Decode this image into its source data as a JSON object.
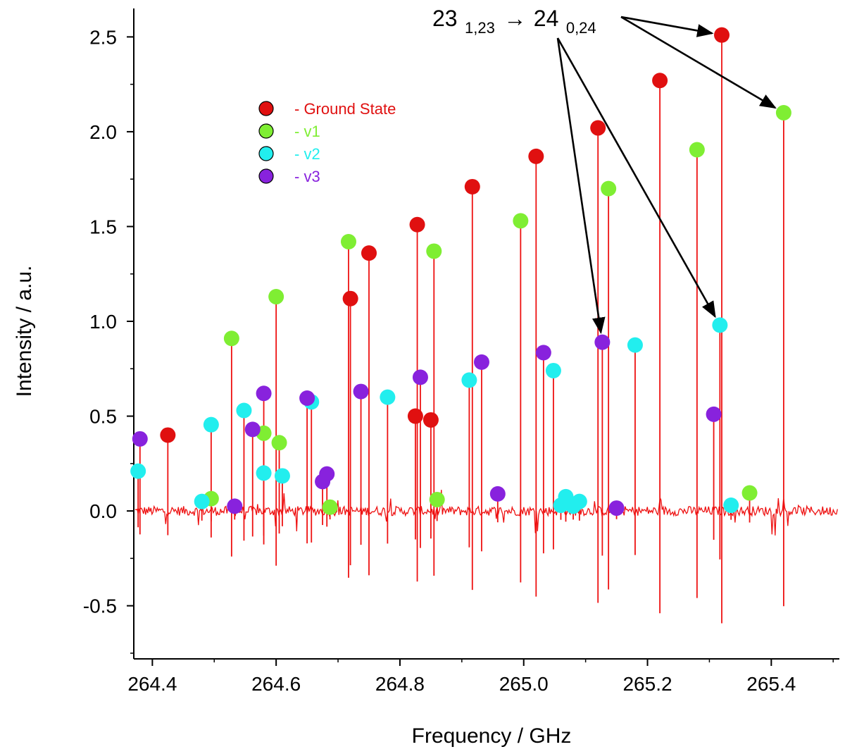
{
  "chart_data": {
    "type": "scatter",
    "title": "",
    "xlabel": "Frequency / GHz",
    "ylabel": "Intensity / a.u.",
    "xlim": [
      264.37,
      265.51
    ],
    "ylim": [
      -0.78,
      2.65
    ],
    "xticks": [
      264.4,
      264.6,
      264.8,
      265.0,
      265.2,
      265.4
    ],
    "xtick_labels": [
      "264.4",
      "264.6",
      "264.8",
      "265.0",
      "265.2",
      "265.4"
    ],
    "yticks": [
      -0.5,
      0.0,
      0.5,
      1.0,
      1.5,
      2.0,
      2.5
    ],
    "ytick_labels": [
      "-0.5",
      "0.0",
      "0.5",
      "1.0",
      "1.5",
      "2.0",
      "2.5"
    ],
    "grid": false,
    "spectrum_color": "#ee1111",
    "legend": {
      "placement": "upper-left",
      "entries": [
        {
          "label": "- Ground State",
          "color": "#e01010"
        },
        {
          "label": "- v1",
          "color": "#7fee33"
        },
        {
          "label": "- v2",
          "color": "#22eeee"
        },
        {
          "label": "- v3",
          "color": "#8822dd"
        }
      ]
    },
    "annotation": {
      "base_lower": "23",
      "sub_lower": "1,23",
      "arrow_symbol": "→",
      "base_upper": "24",
      "sub_upper": "0,24"
    },
    "annotation_targets": [
      {
        "x": 265.32,
        "y": 2.51
      },
      {
        "x": 265.42,
        "y": 2.1
      },
      {
        "x": 265.127,
        "y": 0.89
      },
      {
        "x": 265.317,
        "y": 0.98
      }
    ],
    "series": [
      {
        "name": "Ground State",
        "points": [
          {
            "x": 264.425,
            "y": 0.4
          },
          {
            "x": 264.72,
            "y": 1.12
          },
          {
            "x": 264.75,
            "y": 1.36
          },
          {
            "x": 264.825,
            "y": 0.5
          },
          {
            "x": 264.828,
            "y": 1.51
          },
          {
            "x": 264.85,
            "y": 0.48
          },
          {
            "x": 264.917,
            "y": 1.71
          },
          {
            "x": 265.02,
            "y": 1.87
          },
          {
            "x": 265.12,
            "y": 2.02
          },
          {
            "x": 265.22,
            "y": 2.27
          },
          {
            "x": 265.32,
            "y": 2.51
          }
        ]
      },
      {
        "name": "v1",
        "points": [
          {
            "x": 264.495,
            "y": 0.065
          },
          {
            "x": 264.528,
            "y": 0.91
          },
          {
            "x": 264.58,
            "y": 0.41
          },
          {
            "x": 264.6,
            "y": 1.13
          },
          {
            "x": 264.605,
            "y": 0.36
          },
          {
            "x": 264.687,
            "y": 0.02
          },
          {
            "x": 264.717,
            "y": 1.42
          },
          {
            "x": 264.855,
            "y": 1.37
          },
          {
            "x": 264.86,
            "y": 0.06
          },
          {
            "x": 264.995,
            "y": 1.53
          },
          {
            "x": 265.137,
            "y": 1.7
          },
          {
            "x": 265.28,
            "y": 1.905
          },
          {
            "x": 265.365,
            "y": 0.095
          },
          {
            "x": 265.42,
            "y": 2.1
          }
        ]
      },
      {
        "name": "v2",
        "points": [
          {
            "x": 264.377,
            "y": 0.21
          },
          {
            "x": 264.48,
            "y": 0.05
          },
          {
            "x": 264.495,
            "y": 0.455
          },
          {
            "x": 264.548,
            "y": 0.53
          },
          {
            "x": 264.58,
            "y": 0.2
          },
          {
            "x": 264.61,
            "y": 0.185
          },
          {
            "x": 264.657,
            "y": 0.575
          },
          {
            "x": 264.78,
            "y": 0.6
          },
          {
            "x": 264.912,
            "y": 0.69
          },
          {
            "x": 265.048,
            "y": 0.74
          },
          {
            "x": 265.06,
            "y": 0.03
          },
          {
            "x": 265.068,
            "y": 0.075
          },
          {
            "x": 265.08,
            "y": 0.025
          },
          {
            "x": 265.09,
            "y": 0.05
          },
          {
            "x": 265.18,
            "y": 0.875
          },
          {
            "x": 265.317,
            "y": 0.98
          },
          {
            "x": 265.335,
            "y": 0.03
          }
        ]
      },
      {
        "name": "v3",
        "points": [
          {
            "x": 264.38,
            "y": 0.38
          },
          {
            "x": 264.533,
            "y": 0.025
          },
          {
            "x": 264.562,
            "y": 0.43
          },
          {
            "x": 264.58,
            "y": 0.62
          },
          {
            "x": 264.65,
            "y": 0.595
          },
          {
            "x": 264.675,
            "y": 0.155
          },
          {
            "x": 264.682,
            "y": 0.195
          },
          {
            "x": 264.737,
            "y": 0.63
          },
          {
            "x": 264.833,
            "y": 0.705
          },
          {
            "x": 264.932,
            "y": 0.785
          },
          {
            "x": 264.958,
            "y": 0.09
          },
          {
            "x": 265.032,
            "y": 0.835
          },
          {
            "x": 265.127,
            "y": 0.89
          },
          {
            "x": 265.15,
            "y": 0.015
          },
          {
            "x": 265.307,
            "y": 0.51
          }
        ]
      }
    ]
  }
}
